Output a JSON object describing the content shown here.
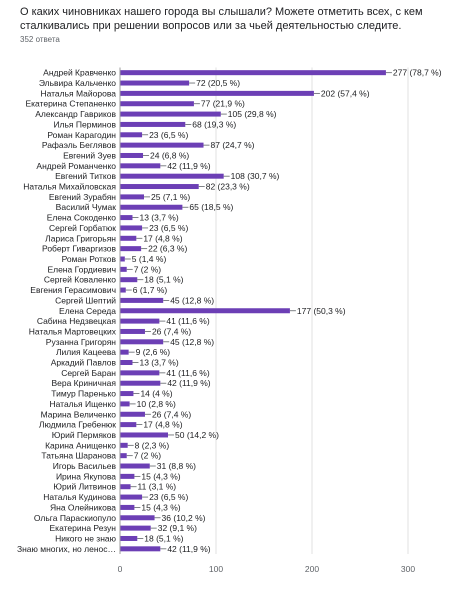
{
  "header": {
    "question": "О каких чиновниках нашего города вы слышали? Можете отметить всех, с кем сталкивались при решении вопросов или за чьей деятельностью следите.",
    "responses": "352 ответа"
  },
  "colors": {
    "bar": "#6c3fb5",
    "grid": "#e0e0e0",
    "axis": "#9e9e9e"
  },
  "chart_data": {
    "type": "bar",
    "orientation": "horizontal",
    "xlim": [
      0,
      300
    ],
    "ticks": [
      "0",
      "100",
      "200",
      "300"
    ],
    "grid": true,
    "categories": [
      "Андрей Кравченко",
      "Эльвира Кальченко",
      "Наталья Майорова",
      "Екатерина Степаненко",
      "Александр Гавриков",
      "Илья Перминов",
      "Роман Карагодин",
      "Рафаэль Беглявов",
      "Евгений Зуев",
      "Андрей Романченко",
      "Евгений Титков",
      "Наталья Михайловская",
      "Евгений Зурабян",
      "Василий Чумак",
      "Елена Сокоденко",
      "Сергей Горбатюк",
      "Лариса Григорьян",
      "Роберт Гиваргизов",
      "Роман Ротков",
      "Елена Гордиевич",
      "Сергей Коваленко",
      "Евгения Герасимович",
      "Сергей Шептий",
      "Елена Середа",
      "Сабина Недзвецкая",
      "Наталья Мартовецких",
      "Рузанна Григорян",
      "Лилия Кацеева",
      "Аркадий Павлов",
      "Сергей Баран",
      "Вера Криничная",
      "Тимур Паренько",
      "Наталья Ищенко",
      "Марина Величенко",
      "Людмила Гребенюк",
      "Юрий Пермяков",
      "Карина Анищенко",
      "Татьяна Шаранова",
      "Игорь Васильев",
      "Ирина Якупова",
      "Юрий Литвинов",
      "Наталья Кудинова",
      "Яна Олейникова",
      "Ольга Параскиопуло",
      "Екатерина Резун",
      "Никого не знаю",
      "Знаю многих, но леноc…"
    ],
    "values": [
      277,
      72,
      202,
      77,
      105,
      68,
      23,
      87,
      24,
      42,
      108,
      82,
      25,
      65,
      13,
      23,
      17,
      22,
      5,
      7,
      18,
      6,
      45,
      177,
      41,
      26,
      45,
      9,
      13,
      41,
      42,
      14,
      10,
      26,
      17,
      50,
      8,
      7,
      31,
      15,
      11,
      23,
      15,
      36,
      32,
      18,
      42
    ],
    "labels": [
      "277 (78,7 %)",
      "72 (20,5 %)",
      "202 (57,4 %)",
      "77 (21,9 %)",
      "105 (29,8 %)",
      "68 (19,3 %)",
      "23 (6,5 %)",
      "87 (24,7 %)",
      "24 (6,8 %)",
      "42 (11,9 %)",
      "108 (30,7 %)",
      "82 (23,3 %)",
      "25 (7,1 %)",
      "65 (18,5 %)",
      "13 (3,7 %)",
      "23 (6,5 %)",
      "17 (4,8 %)",
      "22 (6,3 %)",
      "5 (1,4 %)",
      "7 (2 %)",
      "18 (5,1 %)",
      "6 (1,7 %)",
      "45 (12,8 %)",
      "177 (50,3 %)",
      "41 (11,6 %)",
      "26 (7,4 %)",
      "45 (12,8 %)",
      "9 (2,6 %)",
      "13 (3,7 %)",
      "41 (11,6 %)",
      "42 (11,9 %)",
      "14 (4 %)",
      "10 (2,8 %)",
      "26 (7,4 %)",
      "17 (4,8 %)",
      "50 (14,2 %)",
      "8 (2,3 %)",
      "7 (2 %)",
      "31 (8,8 %)",
      "15 (4,3 %)",
      "11 (3,1 %)",
      "23 (6,5 %)",
      "15 (4,3 %)",
      "36 (10,2 %)",
      "32 (9,1 %)",
      "18 (5,1 %)",
      "42 (11,9 %)"
    ]
  }
}
